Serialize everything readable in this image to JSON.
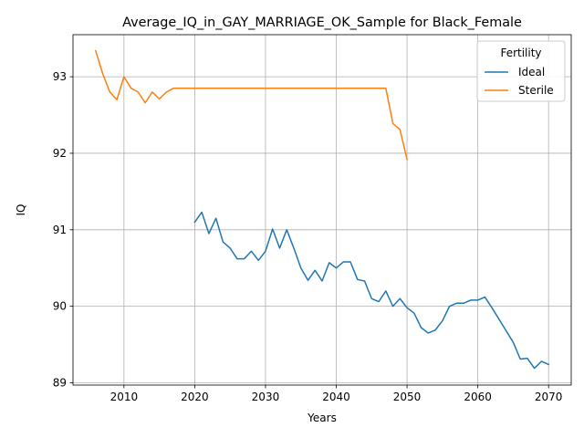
{
  "chart_data": {
    "type": "line",
    "title": "Average_IQ_in_GAY_MARRIAGE_OK_Sample for Black_Female",
    "xlabel": "Years",
    "ylabel": "IQ",
    "xlim": [
      2002.8,
      2073.2
    ],
    "ylim": [
      88.97,
      93.55
    ],
    "xticks": [
      2010,
      2020,
      2030,
      2040,
      2050,
      2060,
      2070
    ],
    "yticks": [
      89,
      90,
      91,
      92,
      93
    ],
    "grid": true,
    "legend": {
      "title": "Fertility",
      "placement": "top-right"
    },
    "series": [
      {
        "name": "Ideal",
        "color": "#1f77b4",
        "x": [
          2020,
          2021,
          2022,
          2023,
          2024,
          2025,
          2026,
          2027,
          2028,
          2029,
          2030,
          2031,
          2032,
          2033,
          2034,
          2035,
          2036,
          2037,
          2038,
          2039,
          2040,
          2041,
          2042,
          2043,
          2044,
          2045,
          2046,
          2047,
          2048,
          2049,
          2050,
          2051,
          2052,
          2053,
          2054,
          2055,
          2056,
          2057,
          2058,
          2059,
          2060,
          2061,
          2062,
          2063,
          2064,
          2065,
          2066,
          2067,
          2068,
          2069,
          2070
        ],
        "values": [
          91.1,
          91.23,
          90.95,
          91.15,
          90.84,
          90.76,
          90.62,
          90.62,
          90.72,
          90.6,
          90.72,
          91.01,
          90.76,
          91.0,
          90.76,
          90.5,
          90.34,
          90.47,
          90.33,
          90.57,
          90.5,
          90.58,
          90.58,
          90.35,
          90.33,
          90.1,
          90.06,
          90.2,
          90.0,
          90.1,
          89.98,
          89.91,
          89.72,
          89.65,
          89.69,
          89.81,
          90.0,
          90.04,
          90.04,
          90.08,
          90.08,
          90.12,
          89.98,
          89.83,
          89.68,
          89.53,
          89.31,
          89.32,
          89.19,
          89.28,
          89.24
        ]
      },
      {
        "name": "Sterile",
        "color": "#ff7f0e",
        "x": [
          2006,
          2007,
          2008,
          2009,
          2010,
          2011,
          2012,
          2013,
          2014,
          2015,
          2016,
          2017,
          2018,
          2019,
          2020,
          2021,
          2022,
          2023,
          2024,
          2025,
          2026,
          2027,
          2028,
          2029,
          2030,
          2031,
          2032,
          2033,
          2034,
          2035,
          2036,
          2037,
          2038,
          2039,
          2040,
          2041,
          2042,
          2043,
          2044,
          2045,
          2046,
          2047,
          2048,
          2049,
          2050
        ],
        "values": [
          93.34,
          93.04,
          92.8,
          92.7,
          93.0,
          92.85,
          92.8,
          92.66,
          92.8,
          92.71,
          92.8,
          92.85,
          92.85,
          92.85,
          92.85,
          92.85,
          92.85,
          92.85,
          92.85,
          92.85,
          92.85,
          92.85,
          92.85,
          92.85,
          92.85,
          92.85,
          92.85,
          92.85,
          92.85,
          92.85,
          92.85,
          92.85,
          92.85,
          92.85,
          92.85,
          92.85,
          92.85,
          92.85,
          92.85,
          92.85,
          92.85,
          92.85,
          92.39,
          92.31,
          91.92
        ]
      }
    ]
  }
}
